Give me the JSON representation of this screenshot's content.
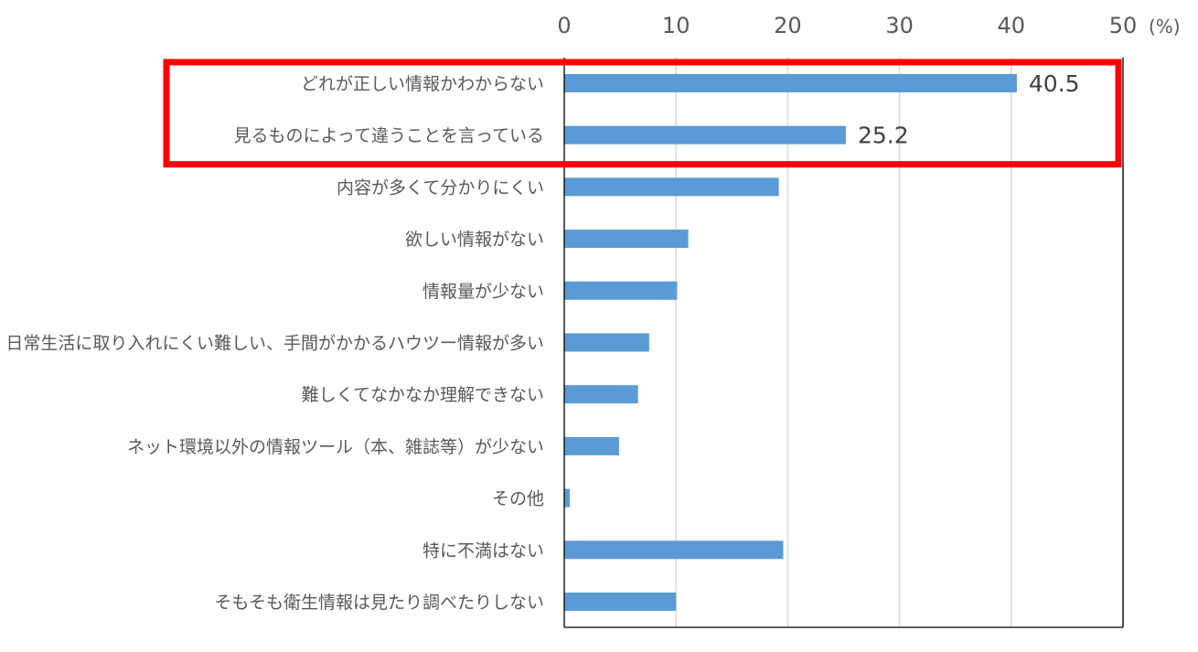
{
  "chart_data": {
    "type": "bar",
    "orientation": "horizontal",
    "categories": [
      "どれが正しい情報かわからない",
      "見るものによって違うことを言っている",
      "内容が多くて分かりにくい",
      "欲しい情報がない",
      "情報量が少ない",
      "日常生活に取り入れにくい難しい、手間がかかるハウツー情報が多い",
      "難しくてなかなか理解できない",
      "ネット環境以外の情報ツール（本、雑誌等）が少ない",
      "その他",
      "特に不満はない",
      "そもそも衛生情報は見たり調べたりしない"
    ],
    "values": [
      40.5,
      25.2,
      19.2,
      11.1,
      10.1,
      7.6,
      6.6,
      4.9,
      0.5,
      19.6,
      10.0
    ],
    "data_labels": [
      {
        "index": 0,
        "text": "40.5"
      },
      {
        "index": 1,
        "text": "25.2"
      }
    ],
    "xlim": [
      0,
      50
    ],
    "ticks": [
      {
        "value": 0,
        "label": "0"
      },
      {
        "value": 10,
        "label": "10"
      },
      {
        "value": 20,
        "label": "20"
      },
      {
        "value": 30,
        "label": "30"
      },
      {
        "value": 40,
        "label": "40"
      },
      {
        "value": 50,
        "label": "50"
      }
    ],
    "unit_label": "(%)",
    "axis_position": "top",
    "grid": true,
    "legend": "none",
    "highlight": {
      "rows": [
        0,
        1
      ],
      "color": "#FF0000"
    },
    "colors": {
      "bar": "#5B9BD5",
      "grid": "#D9D9D9",
      "axis": "#000000",
      "tick_text": "#595959",
      "category_text": "#595959",
      "data_label_text": "#404040"
    }
  }
}
